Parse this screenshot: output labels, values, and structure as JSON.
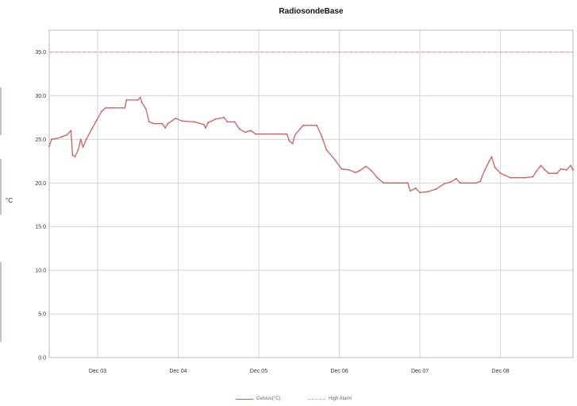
{
  "chart_data": {
    "type": "line",
    "title": "RadiosondeBase",
    "ylabel": "°C",
    "xlabel": "",
    "ylim": [
      0,
      37.5
    ],
    "yticks": [
      "0.0",
      "5.0",
      "10.0",
      "15.0",
      "20.0",
      "25.0",
      "30.0",
      "35.0"
    ],
    "ytick_values": [
      0,
      5,
      10,
      15,
      20,
      25,
      30,
      35
    ],
    "xlim": [
      2.4,
      8.9
    ],
    "x_unit": "December day",
    "xticks": [
      "Dec 03",
      "Dec 04",
      "Dec 05",
      "Dec 06",
      "Dec 07",
      "Dec 08"
    ],
    "xtick_values": [
      3,
      4,
      5,
      6,
      7,
      8
    ],
    "grid": true,
    "legend_position": "bottom-center",
    "series": [
      {
        "name": "Celsius(°C)",
        "color": "#d06060",
        "style": "solid",
        "points": [
          [
            2.4,
            24.2
          ],
          [
            2.43,
            25.0
          ],
          [
            2.5,
            25.1
          ],
          [
            2.56,
            25.3
          ],
          [
            2.62,
            25.5
          ],
          [
            2.67,
            26.0
          ],
          [
            2.69,
            23.2
          ],
          [
            2.72,
            23.0
          ],
          [
            2.76,
            23.8
          ],
          [
            2.79,
            25.0
          ],
          [
            2.82,
            24.1
          ],
          [
            2.86,
            25.0
          ],
          [
            2.93,
            26.2
          ],
          [
            2.99,
            27.2
          ],
          [
            3.05,
            28.2
          ],
          [
            3.1,
            28.6
          ],
          [
            3.2,
            28.6
          ],
          [
            3.34,
            28.6
          ],
          [
            3.36,
            29.5
          ],
          [
            3.5,
            29.5
          ],
          [
            3.53,
            29.8
          ],
          [
            3.55,
            29.2
          ],
          [
            3.6,
            28.5
          ],
          [
            3.64,
            27.0
          ],
          [
            3.7,
            26.8
          ],
          [
            3.8,
            26.8
          ],
          [
            3.84,
            26.3
          ],
          [
            3.87,
            26.8
          ],
          [
            3.92,
            27.1
          ],
          [
            3.97,
            27.4
          ],
          [
            4.05,
            27.1
          ],
          [
            4.2,
            27.0
          ],
          [
            4.32,
            26.7
          ],
          [
            4.34,
            26.3
          ],
          [
            4.37,
            26.9
          ],
          [
            4.46,
            27.3
          ],
          [
            4.57,
            27.5
          ],
          [
            4.61,
            27.0
          ],
          [
            4.7,
            27.0
          ],
          [
            4.76,
            26.2
          ],
          [
            4.83,
            25.8
          ],
          [
            4.9,
            26.0
          ],
          [
            4.96,
            25.6
          ],
          [
            5.2,
            25.6
          ],
          [
            5.35,
            25.6
          ],
          [
            5.38,
            24.8
          ],
          [
            5.42,
            24.5
          ],
          [
            5.45,
            25.5
          ],
          [
            5.55,
            26.6
          ],
          [
            5.72,
            26.6
          ],
          [
            5.78,
            25.4
          ],
          [
            5.84,
            23.8
          ],
          [
            5.95,
            22.6
          ],
          [
            6.03,
            21.6
          ],
          [
            6.12,
            21.5
          ],
          [
            6.2,
            21.2
          ],
          [
            6.25,
            21.4
          ],
          [
            6.33,
            21.9
          ],
          [
            6.4,
            21.4
          ],
          [
            6.47,
            20.6
          ],
          [
            6.55,
            20.0
          ],
          [
            6.7,
            20.0
          ],
          [
            6.85,
            20.0
          ],
          [
            6.88,
            19.1
          ],
          [
            6.95,
            19.4
          ],
          [
            7.0,
            18.9
          ],
          [
            7.1,
            19.0
          ],
          [
            7.2,
            19.3
          ],
          [
            7.3,
            19.9
          ],
          [
            7.38,
            20.1
          ],
          [
            7.45,
            20.5
          ],
          [
            7.5,
            20.0
          ],
          [
            7.6,
            20.0
          ],
          [
            7.7,
            20.0
          ],
          [
            7.75,
            20.2
          ],
          [
            7.8,
            21.4
          ],
          [
            7.86,
            22.5
          ],
          [
            7.89,
            23.0
          ],
          [
            7.93,
            21.8
          ],
          [
            8.0,
            21.1
          ],
          [
            8.05,
            20.9
          ],
          [
            8.12,
            20.6
          ],
          [
            8.3,
            20.6
          ],
          [
            8.4,
            20.7
          ],
          [
            8.45,
            21.4
          ],
          [
            8.5,
            22.0
          ],
          [
            8.55,
            21.5
          ],
          [
            8.6,
            21.1
          ],
          [
            8.7,
            21.1
          ],
          [
            8.75,
            21.6
          ],
          [
            8.82,
            21.5
          ],
          [
            8.87,
            22.0
          ],
          [
            8.9,
            21.5
          ]
        ]
      },
      {
        "name": "High Alarm",
        "color": "#e0a0a0",
        "style": "dashed",
        "points": [
          [
            2.4,
            35.0
          ],
          [
            8.9,
            35.0
          ]
        ]
      }
    ]
  }
}
